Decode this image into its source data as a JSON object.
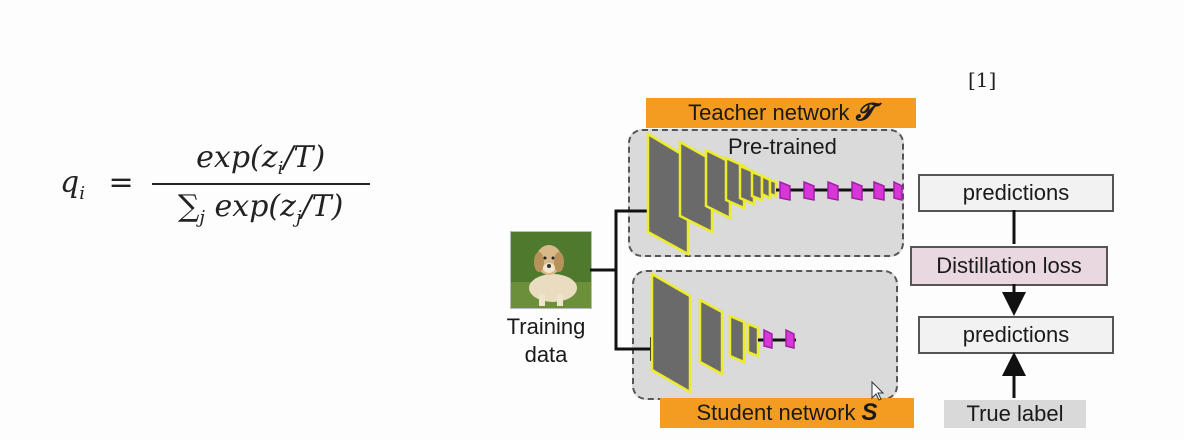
{
  "formula": {
    "lhs": "q",
    "lhs_sub": "i",
    "equals": "=",
    "numerator": "exp(z",
    "numerator_sub": "i",
    "numerator_tail": "/T)",
    "denominator_sum": "∑",
    "denominator_sum_sub": "j",
    "denominator": "exp(z",
    "denominator_sub": "j",
    "denominator_tail": "/T)"
  },
  "reference": "[1]",
  "teacher": {
    "label": "Teacher network",
    "symbol": "𝓣",
    "note": "Pre-trained"
  },
  "student": {
    "label": "Student network",
    "symbol": "S"
  },
  "input": {
    "label_line1": "Training",
    "label_line2": "data"
  },
  "outputs": {
    "teacher_predictions": "predictions",
    "distillation_loss": "Distillation loss",
    "student_predictions": "predictions",
    "true_label": "True label"
  },
  "colors": {
    "orange": "#f39c21",
    "layer_outline": "#ecec2a",
    "fc_layer": "#d936d9",
    "box_fill": "#dadada"
  }
}
